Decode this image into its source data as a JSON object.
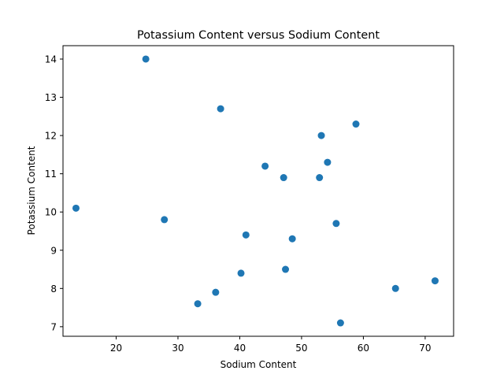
{
  "chart_data": {
    "type": "scatter",
    "title": "Potassium Content versus Sodium Content",
    "xlabel": "Sodium Content",
    "ylabel": "Potassium Content",
    "xlim": [
      11.4,
      74.6
    ],
    "ylim": [
      6.75,
      14.35
    ],
    "xticks": [
      20,
      30,
      40,
      50,
      60,
      70
    ],
    "yticks": [
      7,
      8,
      9,
      10,
      11,
      12,
      13,
      14
    ],
    "grid": false,
    "marker_color": "#1f77b4",
    "points": [
      {
        "x": 24.8,
        "y": 14.0
      },
      {
        "x": 36.9,
        "y": 12.7
      },
      {
        "x": 58.8,
        "y": 12.3
      },
      {
        "x": 53.2,
        "y": 12.0
      },
      {
        "x": 54.2,
        "y": 11.3
      },
      {
        "x": 44.1,
        "y": 11.2
      },
      {
        "x": 47.1,
        "y": 10.9
      },
      {
        "x": 52.9,
        "y": 10.9
      },
      {
        "x": 13.5,
        "y": 10.1
      },
      {
        "x": 27.8,
        "y": 9.8
      },
      {
        "x": 55.6,
        "y": 9.7
      },
      {
        "x": 41.0,
        "y": 9.4
      },
      {
        "x": 48.5,
        "y": 9.3
      },
      {
        "x": 47.4,
        "y": 8.5
      },
      {
        "x": 40.2,
        "y": 8.4
      },
      {
        "x": 71.6,
        "y": 8.2
      },
      {
        "x": 65.2,
        "y": 8.0
      },
      {
        "x": 36.1,
        "y": 7.9
      },
      {
        "x": 33.2,
        "y": 7.6
      },
      {
        "x": 56.3,
        "y": 7.1
      }
    ]
  }
}
